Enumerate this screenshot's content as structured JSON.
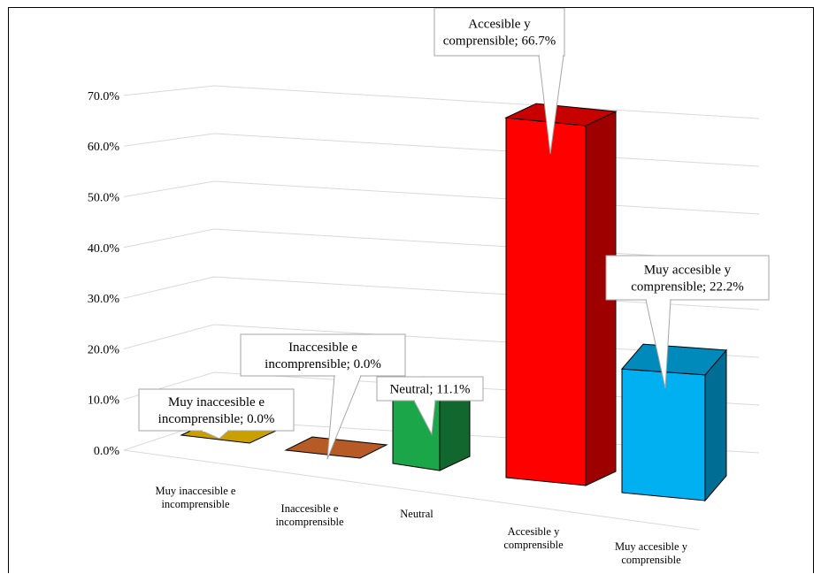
{
  "chart_data": {
    "type": "bar",
    "three_d": true,
    "categories": [
      [
        "Muy inaccesible e",
        "incomprensible"
      ],
      [
        "Inaccesible e",
        "incomprensible"
      ],
      [
        "Neutral"
      ],
      [
        "Accesible y",
        "comprensible"
      ],
      [
        "Muy accesible y",
        "comprensible"
      ]
    ],
    "values": [
      0.0,
      0.0,
      11.1,
      66.7,
      22.2
    ],
    "data_labels": [
      [
        "Muy inaccesible e",
        "incomprensible; 0.0%"
      ],
      [
        "Inaccesible e",
        "incomprensible; 0.0%"
      ],
      [
        "Neutral; 11.1%"
      ],
      [
        "Accesible y",
        "comprensible; 66.7%"
      ],
      [
        "Muy accesible y",
        "comprensible; 22.2%"
      ]
    ],
    "colors": [
      "#C9A000",
      "#B65A26",
      "#1BA64A",
      "#FF0000",
      "#00B0F0"
    ],
    "y_ticks": [
      "0.0%",
      "10.0%",
      "20.0%",
      "30.0%",
      "40.0%",
      "50.0%",
      "60.0%",
      "70.0%"
    ],
    "ylim": [
      0,
      70
    ],
    "grid": true,
    "legend": "none",
    "title": "",
    "xlabel": "",
    "ylabel": ""
  }
}
